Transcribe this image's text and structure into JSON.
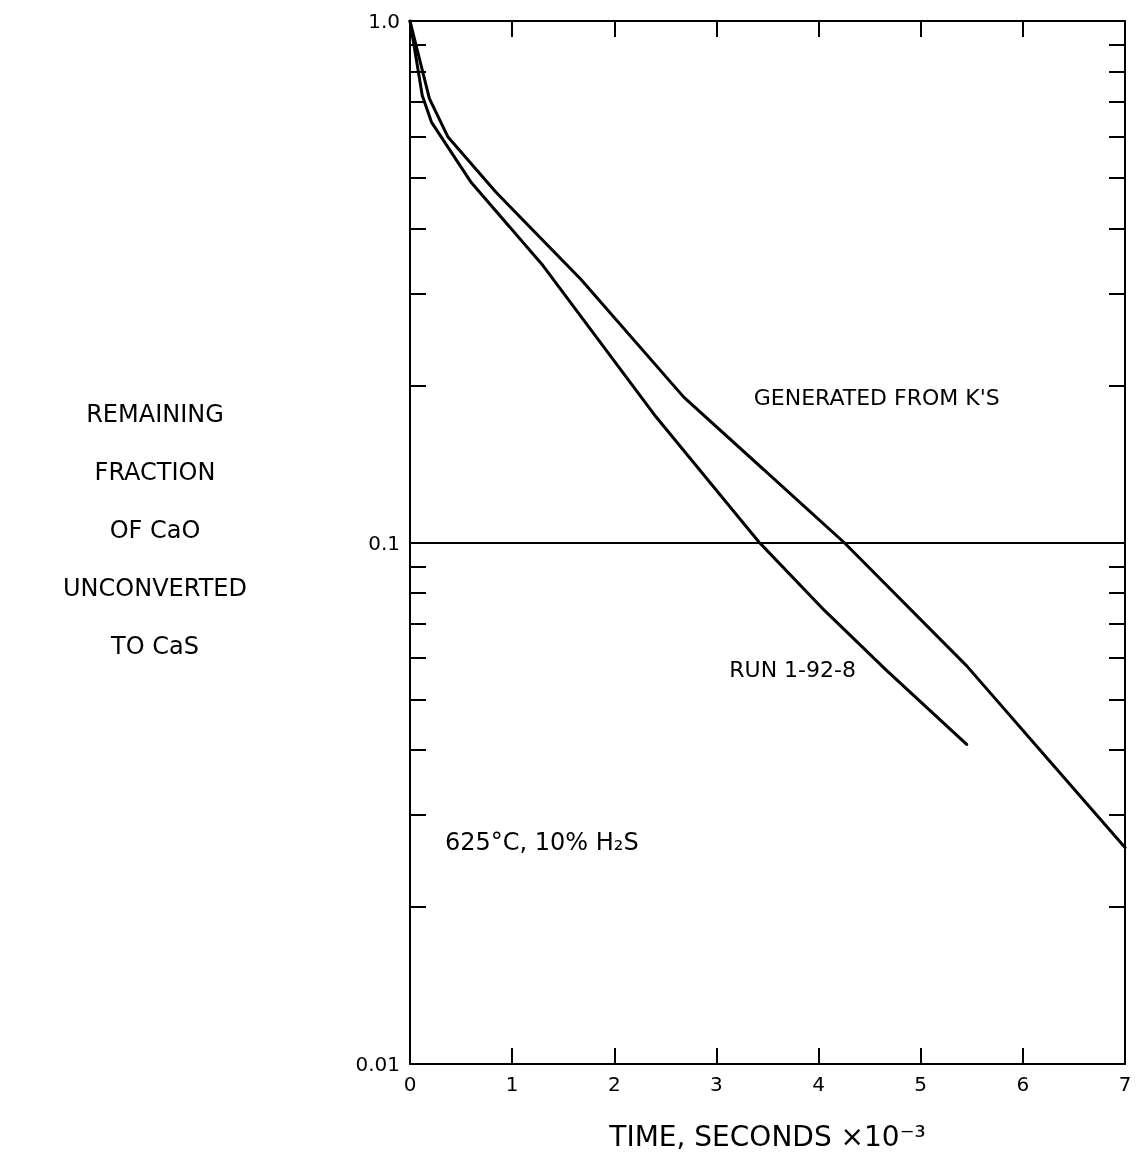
{
  "chart_data": {
    "type": "line",
    "ylabel": "REMAINING\nFRACTION\nOF CaO\nUNCONVERTED\nTO CaS",
    "xlabel": "TIME, SECONDS ×10⁻³",
    "log": "y",
    "grid": false,
    "marker": "none",
    "line_style": "solid",
    "xlim": [
      0,
      7
    ],
    "xticks": [
      0,
      1,
      2,
      3,
      4,
      5,
      6,
      7
    ],
    "ylim": [
      0.01,
      1
    ],
    "yticks": [
      {
        "value": 0.01,
        "label": "0.01"
      },
      {
        "value": 0.02,
        "label": null
      },
      {
        "value": 0.03,
        "label": null
      },
      {
        "value": 0.04,
        "label": null
      },
      {
        "value": 0.05,
        "label": null
      },
      {
        "value": 0.06,
        "label": null
      },
      {
        "value": 0.07,
        "label": null
      },
      {
        "value": 0.08,
        "label": null
      },
      {
        "value": 0.09,
        "label": null
      },
      0.1,
      {
        "value": 0.2,
        "label": null
      },
      {
        "value": 0.3,
        "label": null
      },
      {
        "value": 0.4,
        "label": null
      },
      {
        "value": 0.5,
        "label": null
      },
      {
        "value": 0.6,
        "label": null
      },
      {
        "value": 0.7,
        "label": null
      },
      {
        "value": 0.8,
        "label": null
      },
      {
        "value": 0.9,
        "label": null
      },
      {
        "value": 1,
        "label": "1.0"
      }
    ],
    "ref_lines": [
      {
        "axis": "y",
        "value": 0.1,
        "color": "#000000"
      }
    ],
    "annotations": [
      "625°C, 10% H₂S"
    ],
    "series": [
      {
        "name": "GENERATED FROM K'S",
        "color": "#000000",
        "x": [
          0,
          0.19,
          0.37,
          0.84,
          1.67,
          2.68,
          4.25,
          5.45,
          7
        ],
        "values": [
          1,
          0.71,
          0.6,
          0.47,
          0.32,
          0.19,
          0.1,
          0.058,
          0.026
        ]
      },
      {
        "name": "RUN 1-92-8",
        "color": "#000000",
        "x": [
          0,
          0.12,
          0.21,
          0.6,
          1.3,
          2.41,
          3.42,
          4.06,
          4.66,
          5.45
        ],
        "values": [
          1,
          0.72,
          0.64,
          0.49,
          0.34,
          0.174,
          0.1,
          0.074,
          0.057,
          0.041
        ]
      }
    ]
  }
}
